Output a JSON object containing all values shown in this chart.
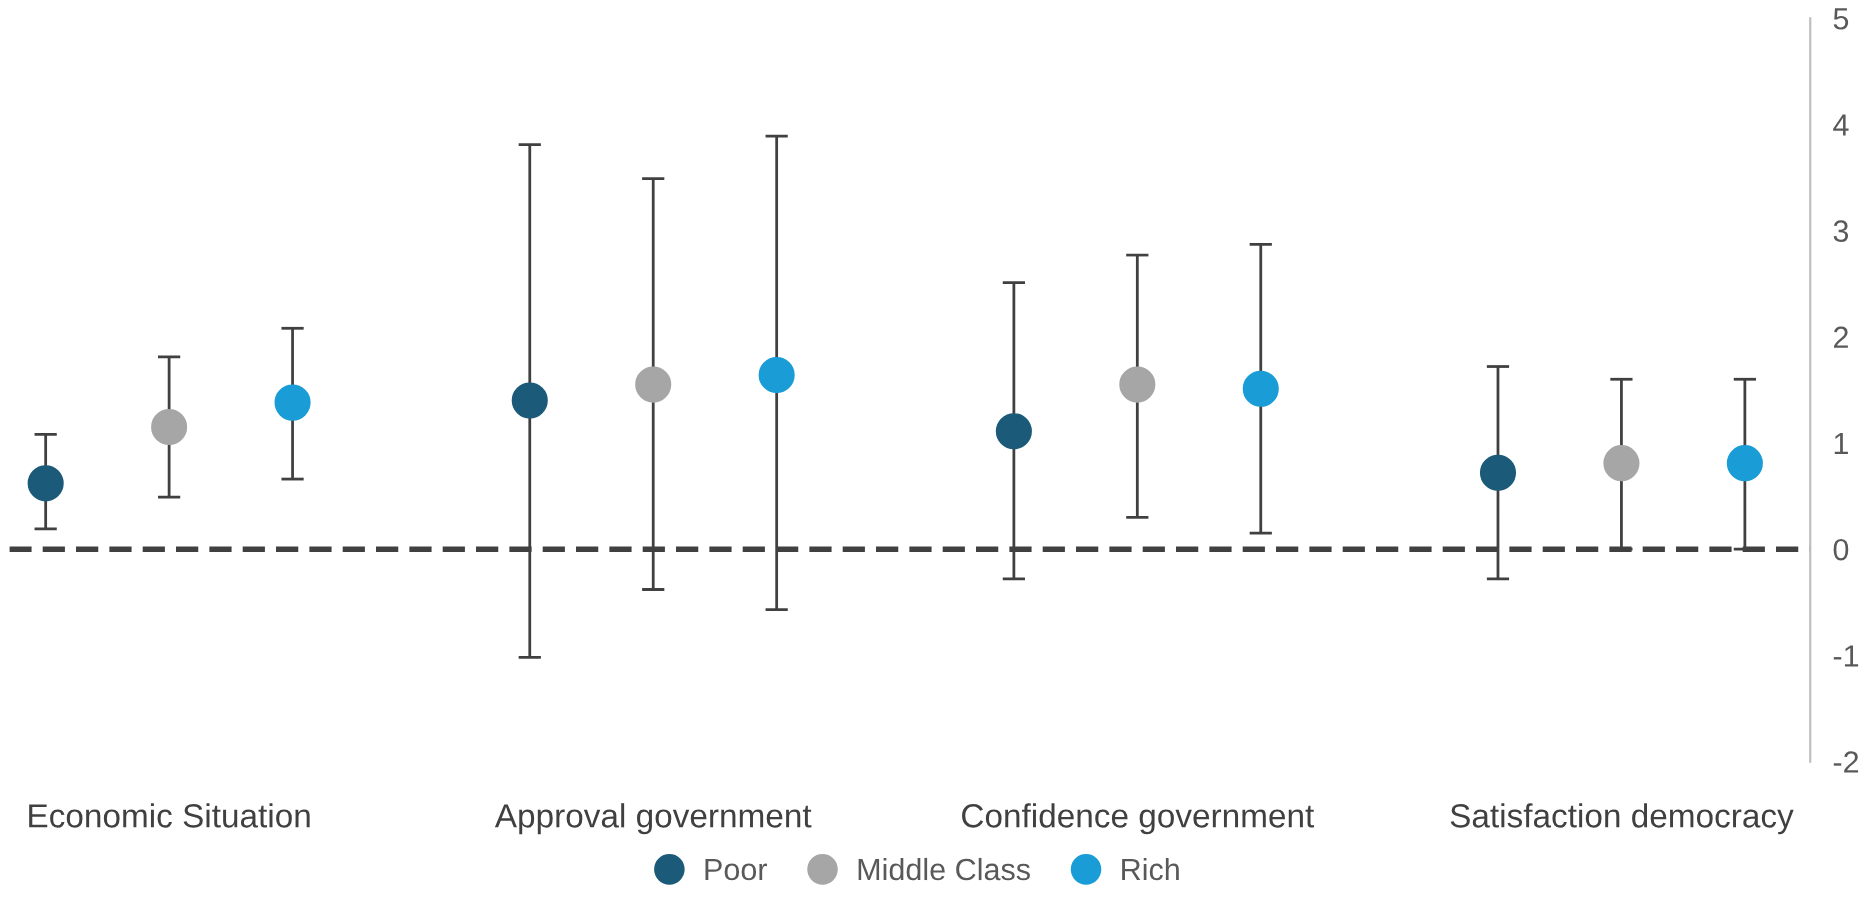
{
  "chart_data": {
    "type": "scatter",
    "categories": [
      "Economic Situation",
      "Approval government",
      "Confidence government",
      "Satisfaction democracy"
    ],
    "series": [
      {
        "name": "Poor",
        "color": "#1b5a78",
        "values": [
          0.62,
          1.4,
          1.11,
          0.72
        ],
        "errors": [
          [
            0.19,
            1.08
          ],
          [
            -1.02,
            3.81
          ],
          [
            -0.28,
            2.51
          ],
          [
            -0.28,
            1.72
          ]
        ]
      },
      {
        "name": "Middle Class",
        "color": "#a6a6a6",
        "values": [
          1.15,
          1.55,
          1.55,
          0.81
        ],
        "errors": [
          [
            0.49,
            1.81
          ],
          [
            -0.38,
            3.49
          ],
          [
            0.3,
            2.77
          ],
          [
            0,
            1.6
          ]
        ]
      },
      {
        "name": "Rich",
        "color": "#1a9dd7",
        "values": [
          1.38,
          1.64,
          1.51,
          0.81
        ],
        "errors": [
          [
            0.66,
            2.08
          ],
          [
            -0.57,
            3.89
          ],
          [
            0.15,
            2.87
          ],
          [
            0,
            1.6
          ]
        ]
      }
    ],
    "ylim": [
      -2,
      5
    ],
    "yticks": [
      -2,
      -1,
      0,
      1,
      2,
      3,
      4,
      5
    ],
    "grid": false,
    "legend": "bottom",
    "marker": "circle",
    "ref_lines": [
      {
        "axis": "y",
        "value": 0,
        "color": "#404040",
        "line_style": "dashed"
      }
    ]
  }
}
